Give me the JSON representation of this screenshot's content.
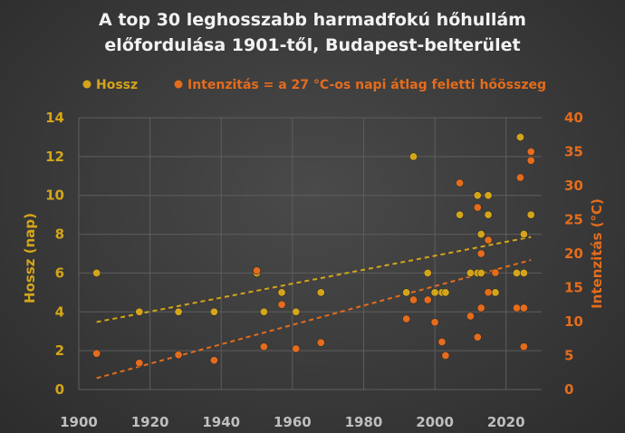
{
  "chart_data": {
    "type": "scatter",
    "title_line1": "A top 30 leghosszabb harmadfokú hőhullám",
    "title_line2": "előfordulása 1901-től, Budapest-belterület",
    "xlim": [
      1900,
      2030
    ],
    "x_ticks": [
      "1900",
      "1920",
      "1940",
      "1960",
      "1980",
      "2000",
      "2020"
    ],
    "ylabel": "Hossz (nap)",
    "ylim": [
      0,
      14
    ],
    "y_ticks": [
      "0",
      "2",
      "4",
      "6",
      "8",
      "10",
      "12",
      "14"
    ],
    "y2label": "Intenzitás (°C)",
    "y2lim": [
      0,
      40
    ],
    "y2_ticks": [
      "0",
      "5",
      "10",
      "15",
      "20",
      "25",
      "30",
      "35",
      "40"
    ],
    "legend_position": "top",
    "grid": true,
    "colors": {
      "hossz": "#d4a51a",
      "intenzitas": "#e46c1c"
    },
    "series": [
      {
        "name": "Hossz",
        "axis": "left",
        "trendline": true,
        "points": [
          [
            1905,
            6
          ],
          [
            1917,
            4
          ],
          [
            1928,
            4
          ],
          [
            1938,
            4
          ],
          [
            1950,
            6
          ],
          [
            1952,
            4
          ],
          [
            1957,
            5
          ],
          [
            1961,
            4
          ],
          [
            1968,
            5
          ],
          [
            1992,
            5
          ],
          [
            1994,
            12
          ],
          [
            1998,
            6
          ],
          [
            2000,
            5
          ],
          [
            2002,
            5
          ],
          [
            2003,
            5
          ],
          [
            2007,
            9
          ],
          [
            2010,
            6
          ],
          [
            2012,
            10
          ],
          [
            2012,
            6
          ],
          [
            2013,
            8
          ],
          [
            2013,
            6
          ],
          [
            2015,
            10
          ],
          [
            2015,
            9
          ],
          [
            2017,
            5
          ],
          [
            2023,
            6
          ],
          [
            2024,
            13
          ],
          [
            2025,
            6
          ],
          [
            2025,
            8
          ],
          [
            2027,
            9
          ],
          [
            2000,
            5
          ]
        ]
      },
      {
        "name": "Intenzitás = a 27 °C-os napi átlag feletti hőösszeg",
        "axis": "right",
        "trendline": true,
        "points": [
          [
            1905,
            5.3
          ],
          [
            1917,
            3.9
          ],
          [
            1928,
            5.1
          ],
          [
            1938,
            4.3
          ],
          [
            1950,
            17.5
          ],
          [
            1952,
            6.3
          ],
          [
            1957,
            12.5
          ],
          [
            1961,
            6.0
          ],
          [
            1968,
            6.9
          ],
          [
            1992,
            10.4
          ],
          [
            1994,
            13.2
          ],
          [
            1998,
            13.2
          ],
          [
            2000,
            9.9
          ],
          [
            2002,
            7.0
          ],
          [
            2003,
            5.0
          ],
          [
            2007,
            30.4
          ],
          [
            2010,
            10.8
          ],
          [
            2012,
            26.8
          ],
          [
            2012,
            7.7
          ],
          [
            2013,
            12.0
          ],
          [
            2013,
            20.0
          ],
          [
            2015,
            14.3
          ],
          [
            2015,
            22.0
          ],
          [
            2017,
            17.2
          ],
          [
            2023,
            12.0
          ],
          [
            2024,
            31.2
          ],
          [
            2025,
            6.3
          ],
          [
            2025,
            12.0
          ],
          [
            2027,
            33.7
          ],
          [
            2027,
            35.0
          ]
        ]
      }
    ]
  }
}
